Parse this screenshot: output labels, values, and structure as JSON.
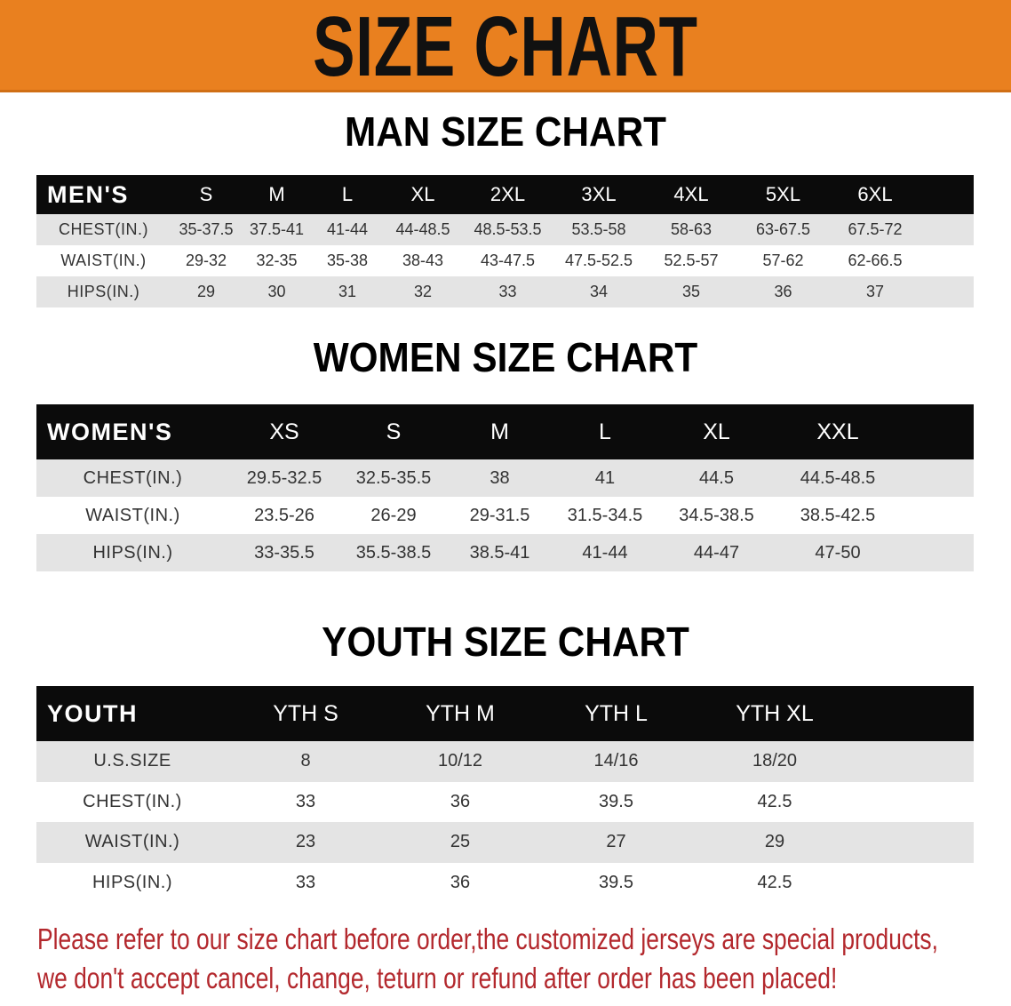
{
  "banner": {
    "title": "SIZE CHART",
    "color": "#e9801f"
  },
  "men": {
    "title": "MAN SIZE CHART",
    "header": [
      "MEN'S",
      "S",
      "M",
      "L",
      "XL",
      "2XL",
      "3XL",
      "4XL",
      "5XL",
      "6XL"
    ],
    "rows": [
      [
        "CHEST(IN.)",
        "35-37.5",
        "37.5-41",
        "41-44",
        "44-48.5",
        "48.5-53.5",
        "53.5-58",
        "58-63",
        "63-67.5",
        "67.5-72"
      ],
      [
        "WAIST(IN.)",
        "29-32",
        "32-35",
        "35-38",
        "38-43",
        "43-47.5",
        "47.5-52.5",
        "52.5-57",
        "57-62",
        "62-66.5"
      ],
      [
        "HIPS(IN.)",
        "29",
        "30",
        "31",
        "32",
        "33",
        "34",
        "35",
        "36",
        "37"
      ]
    ]
  },
  "women": {
    "title": "WOMEN SIZE CHART",
    "header": [
      "WOMEN'S",
      "XS",
      "S",
      "M",
      "L",
      "XL",
      "XXL"
    ],
    "rows": [
      [
        "CHEST(IN.)",
        "29.5-32.5",
        "32.5-35.5",
        "38",
        "41",
        "44.5",
        "44.5-48.5"
      ],
      [
        "WAIST(IN.)",
        "23.5-26",
        "26-29",
        "29-31.5",
        "31.5-34.5",
        "34.5-38.5",
        "38.5-42.5"
      ],
      [
        "HIPS(IN.)",
        "33-35.5",
        "35.5-38.5",
        "38.5-41",
        "41-44",
        "44-47",
        "47-50"
      ]
    ]
  },
  "youth": {
    "title": "YOUTH SIZE CHART",
    "header": [
      "YOUTH",
      "YTH S",
      "YTH M",
      "YTH L",
      "YTH XL"
    ],
    "rows": [
      [
        "U.S.SIZE",
        "8",
        "10/12",
        "14/16",
        "18/20"
      ],
      [
        "CHEST(IN.)",
        "33",
        "36",
        "39.5",
        "42.5"
      ],
      [
        "WAIST(IN.)",
        "23",
        "25",
        "27",
        "29"
      ],
      [
        "HIPS(IN.)",
        "33",
        "36",
        "39.5",
        "42.5"
      ]
    ]
  },
  "footer": {
    "line1": "Please refer to our size chart before order,the customized jerseys are special products,",
    "line2": "we don't accept cancel, change, teturn or refund after order has been placed!",
    "color": "#b3282d"
  }
}
